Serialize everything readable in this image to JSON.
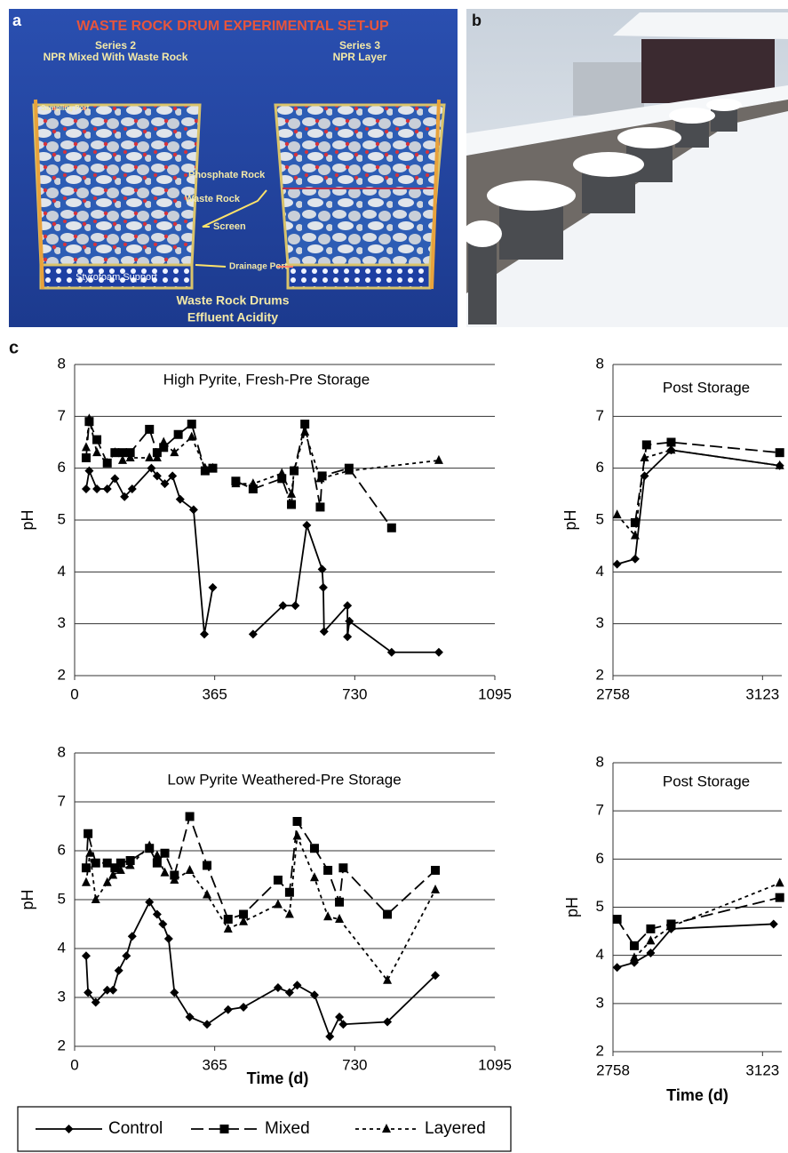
{
  "panel_labels": [
    "a",
    "b",
    "c"
  ],
  "panel_a": {
    "title": "WASTE ROCK DRUM EXPERIMENTAL SET-UP",
    "left_series": "Series 2",
    "left_desc": "NPR Mixed With Waste Rock",
    "right_series": "Series 3",
    "right_desc": "NPR Layer",
    "sampling_port": "Sampling Port",
    "phosphate_rock": "Phosphate Rock",
    "waste_rock": "Waste Rock",
    "screen": "Screen",
    "drainage_port": "Drainage Port",
    "support": "Styrofoam Support",
    "caption_1": "Waste Rock Drums",
    "caption_2": "Effluent Acidity"
  },
  "legend": [
    {
      "name": "Control",
      "dash": "solid",
      "marker": "diamond"
    },
    {
      "name": "Mixed",
      "dash": "dashed",
      "marker": "square"
    },
    {
      "name": "Layered",
      "dash": "dotted",
      "marker": "triangle"
    }
  ],
  "chart_data": [
    {
      "type": "line",
      "title": "High Pyrite, Fresh-Pre Storage",
      "y_label": "pH",
      "xlim": [
        0,
        1095
      ],
      "ylim": [
        2,
        8
      ],
      "xticks": [
        0,
        365,
        730,
        1095
      ],
      "yticks": [
        2,
        3,
        4,
        5,
        6,
        7,
        8
      ],
      "grid": true,
      "color": "#000000",
      "series": [
        {
          "x": [
            30,
            38,
            58,
            85,
            105,
            130,
            150,
            200,
            215,
            235,
            255,
            275,
            310,
            338,
            360,
            null,
            465,
            543,
            575,
            605,
            645,
            648,
            650,
            711,
            711,
            716,
            826,
            949
          ],
          "values": [
            5.6,
            5.95,
            5.6,
            5.6,
            5.8,
            5.45,
            5.6,
            6.0,
            5.85,
            5.7,
            5.85,
            5.4,
            5.2,
            2.8,
            3.7,
            null,
            2.8,
            3.35,
            3.35,
            4.9,
            4.05,
            3.7,
            2.85,
            3.35,
            2.75,
            3.05,
            2.45,
            2.45
          ]
        },
        {
          "x": [
            30,
            38,
            58,
            85,
            105,
            125,
            145,
            195,
            215,
            232,
            270,
            305,
            340,
            360,
            null,
            420,
            465,
            540,
            565,
            572,
            600,
            640,
            645,
            715,
            826
          ],
          "values": [
            6.2,
            6.9,
            6.55,
            6.1,
            6.3,
            6.3,
            6.3,
            6.75,
            6.3,
            6.4,
            6.65,
            6.85,
            5.95,
            6.0,
            null,
            5.75,
            5.6,
            5.8,
            5.3,
            5.95,
            6.85,
            5.25,
            5.85,
            6.0,
            4.85
          ]
        },
        {
          "x": [
            30,
            38,
            58,
            85,
            105,
            125,
            145,
            195,
            215,
            232,
            260,
            305,
            340,
            360,
            null,
            420,
            465,
            540,
            565,
            572,
            600,
            640,
            715,
            949
          ],
          "values": [
            6.4,
            6.95,
            6.3,
            6.1,
            6.3,
            6.15,
            6.2,
            6.2,
            6.2,
            6.5,
            6.3,
            6.6,
            6.0,
            6.0,
            null,
            5.7,
            5.7,
            5.9,
            5.5,
            5.95,
            6.7,
            5.8,
            5.95,
            6.15
          ]
        }
      ]
    },
    {
      "type": "line",
      "title": "Post Storage",
      "y_label": "pH",
      "xlim": [
        2758,
        3170
      ],
      "ylim": [
        2,
        8
      ],
      "xticks": [
        2758,
        3123
      ],
      "yticks": [
        2,
        3,
        4,
        5,
        6,
        7,
        8
      ],
      "grid": true,
      "color": "#000000",
      "series": [
        {
          "x": [
            2768,
            2812,
            2835,
            2900,
            3165
          ],
          "values": [
            4.15,
            4.25,
            5.85,
            6.35,
            6.05
          ]
        },
        {
          "x": [
            2812,
            2840,
            2900,
            3165
          ],
          "values": [
            4.95,
            6.45,
            6.5,
            6.3
          ]
        },
        {
          "x": [
            2768,
            2812,
            2835,
            2900,
            3165
          ],
          "values": [
            5.1,
            4.7,
            6.2,
            6.35,
            6.05
          ]
        }
      ]
    },
    {
      "type": "line",
      "title": "Low Pyrite Weathered-Pre Storage",
      "y_label": "pH",
      "x_label": "Time (d)",
      "xlim": [
        0,
        1095
      ],
      "ylim": [
        2,
        8
      ],
      "xticks": [
        0,
        365,
        730,
        1095
      ],
      "yticks": [
        2,
        3,
        4,
        5,
        6,
        7,
        8
      ],
      "grid": true,
      "color": "#000000",
      "series": [
        {
          "x": [
            30,
            35,
            55,
            85,
            100,
            115,
            135,
            150,
            195,
            215,
            230,
            245,
            260,
            300,
            345,
            400,
            440,
            530,
            560,
            580,
            625,
            665,
            690,
            700,
            815,
            940
          ],
          "values": [
            3.85,
            3.1,
            2.9,
            3.15,
            3.15,
            3.55,
            3.85,
            4.25,
            4.95,
            4.7,
            4.5,
            4.2,
            3.1,
            2.6,
            2.45,
            2.75,
            2.8,
            3.2,
            3.1,
            3.25,
            3.05,
            2.2,
            2.6,
            2.45,
            2.5,
            3.45
          ]
        },
        {
          "x": [
            30,
            35,
            55,
            85,
            105,
            120,
            145,
            195,
            215,
            235,
            260,
            300,
            345,
            400,
            440,
            530,
            560,
            580,
            625,
            660,
            690,
            700,
            815,
            940
          ],
          "values": [
            5.65,
            6.35,
            5.75,
            5.75,
            5.65,
            5.75,
            5.8,
            6.05,
            5.75,
            5.95,
            5.5,
            6.7,
            5.7,
            4.6,
            4.7,
            5.4,
            5.15,
            6.6,
            6.05,
            5.6,
            4.95,
            5.65,
            4.7,
            5.6
          ]
        },
        {
          "x": [
            30,
            40,
            55,
            85,
            100,
            120,
            145,
            195,
            215,
            235,
            260,
            300,
            345,
            400,
            440,
            530,
            560,
            580,
            625,
            660,
            690,
            815,
            940
          ],
          "values": [
            5.35,
            5.95,
            5.0,
            5.35,
            5.5,
            5.6,
            5.7,
            6.1,
            5.9,
            5.55,
            5.4,
            5.6,
            5.1,
            4.4,
            4.55,
            4.9,
            4.7,
            6.3,
            5.45,
            4.65,
            4.6,
            3.35,
            5.2
          ]
        }
      ]
    },
    {
      "type": "line",
      "title": "Post Storage",
      "y_label": "pH",
      "x_label": "Time (d)",
      "xlim": [
        2758,
        3170
      ],
      "ylim": [
        2,
        8
      ],
      "xticks": [
        2758,
        3123
      ],
      "yticks": [
        2,
        3,
        4,
        5,
        6,
        7,
        8
      ],
      "grid": true,
      "color": "#000000",
      "series": [
        {
          "x": [
            2768,
            2810,
            2850,
            2900,
            3150
          ],
          "values": [
            3.75,
            3.85,
            4.05,
            4.55,
            4.65
          ]
        },
        {
          "x": [
            2768,
            2810,
            2850,
            2900,
            3165
          ],
          "values": [
            4.75,
            4.2,
            4.55,
            4.65,
            5.2
          ]
        },
        {
          "x": [
            2810,
            2850,
            2900,
            3165
          ],
          "values": [
            3.95,
            4.3,
            4.6,
            5.5
          ]
        }
      ]
    }
  ]
}
